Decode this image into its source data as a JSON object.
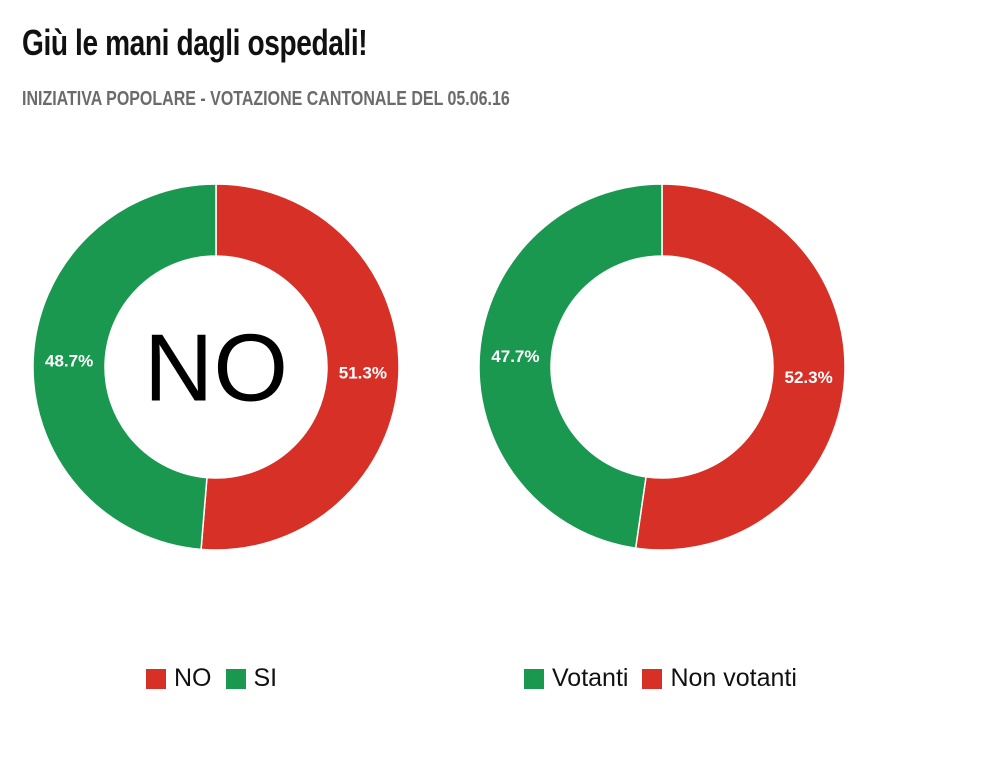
{
  "title": "Giù le mani dagli ospedali!",
  "subtitle": "INIZIATIVA POPOLARE - VOTAZIONE CANTONALE DEL 05.06.16",
  "colors": {
    "red": "#d73027",
    "green": "#1a9850"
  },
  "chart_data": [
    {
      "type": "pie",
      "variant": "donut",
      "center_label": "NO",
      "slices": [
        {
          "name": "NO",
          "value": 51.3,
          "label": "51.3%",
          "color": "#d73027"
        },
        {
          "name": "SI",
          "value": 48.7,
          "label": "48.7%",
          "color": "#1a9850"
        }
      ],
      "legend": [
        "NO",
        "SI"
      ],
      "legend_position": "bottom"
    },
    {
      "type": "pie",
      "variant": "donut",
      "center_label": "",
      "slices": [
        {
          "name": "Non votanti",
          "value": 52.3,
          "label": "52.3%",
          "color": "#d73027"
        },
        {
          "name": "Votanti",
          "value": 47.7,
          "label": "47.7%",
          "color": "#1a9850"
        }
      ],
      "legend": [
        "Votanti",
        "Non votanti"
      ],
      "legend_position": "bottom"
    }
  ]
}
